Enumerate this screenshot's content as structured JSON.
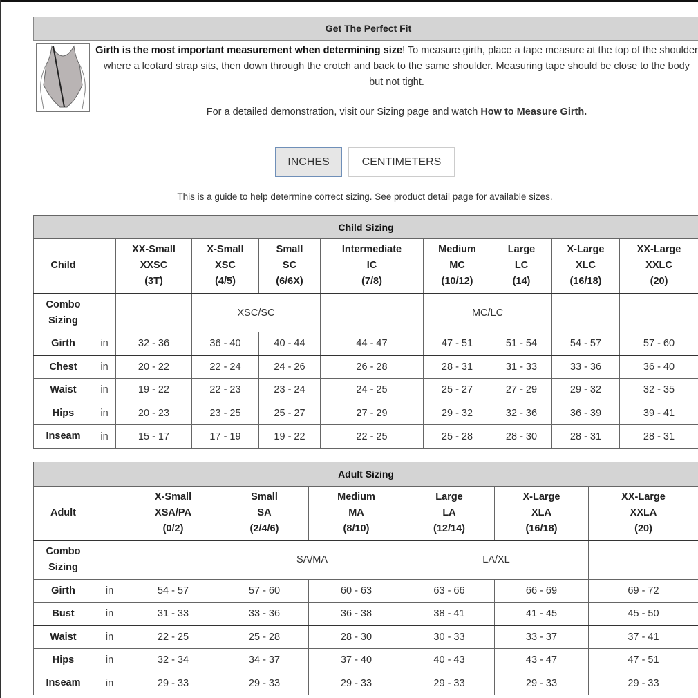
{
  "fit": {
    "title": "Get The Perfect Fit",
    "intro_bold": "Girth is the most important measurement when determining size",
    "intro_rest": "! To measure girth, place a tape measure at the top of the shoulder where a leotard strap sits, then down through the crotch and back to the same shoulder. Measuring tape should be close to the body but not tight.",
    "demo_text": "For a detailed demonstration, visit our Sizing page and watch ",
    "demo_link": "How to Measure Girth.",
    "figure_icon": "leotard-girth-illustration"
  },
  "units": {
    "inches": "INCHES",
    "centimeters": "CENTIMETERS",
    "selected": "INCHES"
  },
  "guide": "This is a guide to help determine correct sizing. See product detail page for available sizes.",
  "child": {
    "title": "Child Sizing",
    "corner": "Child",
    "combo_label": [
      "Combo",
      "Sizing"
    ],
    "sizes": [
      [
        "XX-Small",
        "XXSC",
        "(3T)"
      ],
      [
        "X-Small",
        "XSC",
        "(4/5)"
      ],
      [
        "Small",
        "SC",
        "(6/6X)"
      ],
      [
        "Intermediate",
        "IC",
        "(7/8)"
      ],
      [
        "Medium",
        "MC",
        "(10/12)"
      ],
      [
        "Large",
        "LC",
        "(14)"
      ],
      [
        "X-Large",
        "XLC",
        "(16/18)"
      ],
      [
        "XX-Large",
        "XXLC",
        "(20)"
      ]
    ],
    "combo": [
      {
        "text": "",
        "span": 1
      },
      {
        "text": "XSC/SC",
        "span": 2
      },
      {
        "text": "",
        "span": 1
      },
      {
        "text": "MC/LC",
        "span": 2
      },
      {
        "text": "",
        "span": 1
      },
      {
        "text": "",
        "span": 1
      }
    ],
    "rows": [
      {
        "label": "Girth",
        "unit": "in",
        "values": [
          "32 - 36",
          "36 - 40",
          "40 - 44",
          "44 - 47",
          "47 - 51",
          "51 - 54",
          "54 - 57",
          "57 - 60"
        ]
      },
      {
        "label": "Chest",
        "unit": "in",
        "values": [
          "20 - 22",
          "22 - 24",
          "24 - 26",
          "26 - 28",
          "28 - 31",
          "31 - 33",
          "33 - 36",
          "36 - 40"
        ]
      },
      {
        "label": "Waist",
        "unit": "in",
        "values": [
          "19 - 22",
          "22 - 23",
          "23 - 24",
          "24 - 25",
          "25 - 27",
          "27 - 29",
          "29 - 32",
          "32 - 35"
        ]
      },
      {
        "label": "Hips",
        "unit": "in",
        "values": [
          "20 - 23",
          "23 - 25",
          "25 - 27",
          "27 - 29",
          "29 - 32",
          "32 - 36",
          "36 - 39",
          "39 - 41"
        ]
      },
      {
        "label": "Inseam",
        "unit": "in",
        "values": [
          "15 - 17",
          "17 - 19",
          "19 - 22",
          "22 - 25",
          "25 - 28",
          "28 - 30",
          "28 - 31",
          "28 - 31"
        ]
      }
    ]
  },
  "adult": {
    "title": "Adult Sizing",
    "corner": "Adult",
    "combo_label": [
      "Combo",
      "Sizing"
    ],
    "sizes": [
      [
        "X-Small",
        "XSA/PA",
        "(0/2)"
      ],
      [
        "Small",
        "SA",
        "(2/4/6)"
      ],
      [
        "Medium",
        "MA",
        "(8/10)"
      ],
      [
        "Large",
        "LA",
        "(12/14)"
      ],
      [
        "X-Large",
        "XLA",
        "(16/18)"
      ],
      [
        "XX-Large",
        "XXLA",
        "(20)"
      ]
    ],
    "combo": [
      {
        "text": "",
        "span": 1
      },
      {
        "text": "SA/MA",
        "span": 2
      },
      {
        "text": "LA/XL",
        "span": 2
      },
      {
        "text": "",
        "span": 1
      }
    ],
    "rows": [
      {
        "label": "Girth",
        "unit": "in",
        "values": [
          "54 - 57",
          "57 - 60",
          "60 - 63",
          "63 - 66",
          "66 - 69",
          "69 - 72"
        ]
      },
      {
        "label": "Bust",
        "unit": "in",
        "values": [
          "31 - 33",
          "33 - 36",
          "36 - 38",
          "38 - 41",
          "41 - 45",
          "45 - 50"
        ]
      },
      {
        "label": "Waist",
        "unit": "in",
        "values": [
          "22 - 25",
          "25 - 28",
          "28 - 30",
          "30 - 33",
          "33 - 37",
          "37 - 41"
        ]
      },
      {
        "label": "Hips",
        "unit": "in",
        "values": [
          "32 - 34",
          "34 - 37",
          "37 - 40",
          "40 - 43",
          "43 - 47",
          "47 - 51"
        ]
      },
      {
        "label": "Inseam",
        "unit": "in",
        "values": [
          "29 - 33",
          "29 - 33",
          "29 - 33",
          "29 - 33",
          "29 - 33",
          "29 - 33"
        ]
      }
    ]
  }
}
